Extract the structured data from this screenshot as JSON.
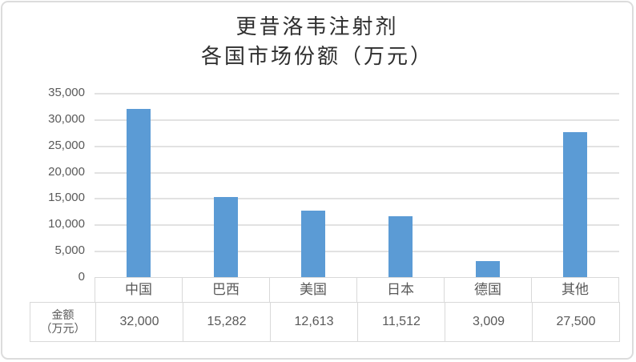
{
  "title": {
    "line1": "更昔洛韦注射剂",
    "line2": "各国市场份额（万元）"
  },
  "chart_data": {
    "type": "bar",
    "title": "更昔洛韦注射剂 各国市场份额（万元）",
    "categories": [
      "中国",
      "巴西",
      "美国",
      "日本",
      "德国",
      "其他"
    ],
    "series": [
      {
        "name": "金额（万元）",
        "values": [
          32000,
          15282,
          12613,
          11512,
          3009,
          27500
        ],
        "value_labels": [
          "32,000",
          "15,282",
          "12,613",
          "11,512",
          "3,009",
          "27,500"
        ]
      }
    ],
    "xlabel": "",
    "ylabel": "",
    "ylim": [
      0,
      35000
    ],
    "ytick_interval": 5000,
    "ytick_labels": [
      "35,000",
      "30,000",
      "25,000",
      "20,000",
      "15,000",
      "10,000",
      "5,000",
      "0"
    ],
    "grid": true,
    "legend_position": "none",
    "data_table": {
      "row_header_lines": [
        "金额",
        "（万元）"
      ]
    }
  },
  "colors": {
    "bar": "#5B9BD5",
    "gridline": "#E2E2E2",
    "table_border": "#D9D9D9",
    "axis_text": "#595959",
    "title_text": "#2E2E2E",
    "frame_border": "#DCDCDC",
    "background": "#FFFFFF"
  }
}
